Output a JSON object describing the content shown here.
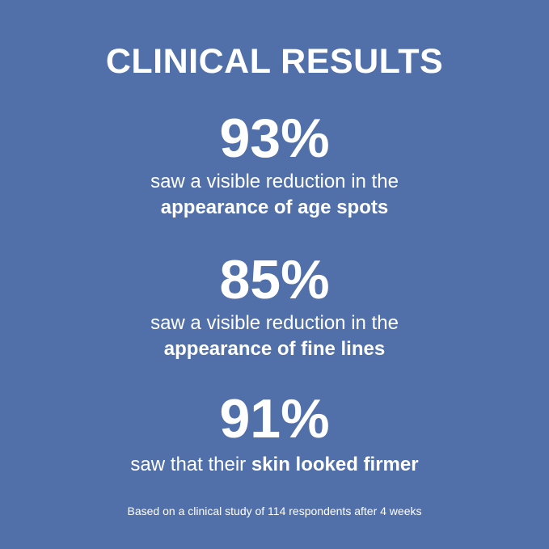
{
  "title": "CLINICAL RESULTS",
  "results": [
    {
      "percent": "93%",
      "line1": "saw a visible reduction in the",
      "line2_bold": "appearance of age spots"
    },
    {
      "percent": "85%",
      "line1": "saw a visible reduction in the",
      "line2_bold": "appearance of fine lines"
    },
    {
      "percent": "91%",
      "line1_plain": "saw that their ",
      "line1_bold": "skin looked firmer"
    }
  ],
  "footnote": "Based on a clinical study of 114 respondents after 4 weeks",
  "colors": {
    "background": "#5170a9",
    "text": "#ffffff"
  }
}
